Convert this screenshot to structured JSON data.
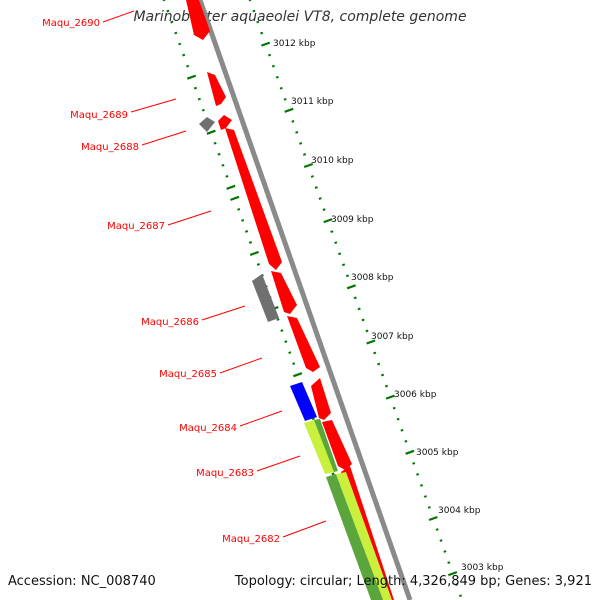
{
  "title": "Marinobacter aquaeolei VT8, complete genome",
  "footer": {
    "accession": "Accession: NC_008740",
    "stats": "Topology: circular; Length: 4,326,849 bp; Genes: 3,921"
  },
  "colors": {
    "backbone": "#8a8a8a",
    "gene_red": "#ff0000",
    "gene_gray": "#707070",
    "gene_blue": "#0000ff",
    "gene_green": "#5aa63c",
    "gene_lime": "#c8f03c",
    "ticks": "#007800",
    "label_red": "#ff0000"
  },
  "ruler_labels": [
    "3012 kbp",
    "3011 kbp",
    "3010 kbp",
    "3009 kbp",
    "3008 kbp",
    "3007 kbp",
    "3006 kbp",
    "3005 kbp",
    "3004 kbp",
    "3003 kbp"
  ],
  "gene_labels": [
    "Maqu_2690",
    "Maqu_2689",
    "Maqu_2688",
    "Maqu_2687",
    "Maqu_2686",
    "Maqu_2685",
    "Maqu_2684",
    "Maqu_2683",
    "Maqu_2682"
  ]
}
